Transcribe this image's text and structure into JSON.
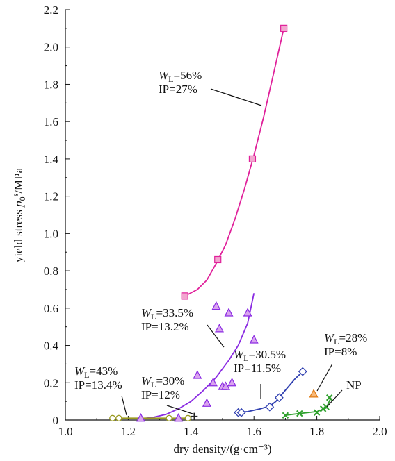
{
  "chart_data": {
    "type": "scatter",
    "xlabel": "dry density/(g·cm⁻³)",
    "ylabel_main": "yield stress ",
    "ylabel_var": "p",
    "ylabel_sub": "0",
    "ylabel_sup": "s",
    "ylabel_unit": "/MPa",
    "xlim": [
      1.0,
      2.0
    ],
    "ylim": [
      0,
      2.2
    ],
    "xticks": [
      "1.0",
      "1.2",
      "1.4",
      "1.6",
      "1.8",
      "2.0"
    ],
    "yticks": [
      "0",
      "0.2",
      "0.4",
      "0.6",
      "0.8",
      "1.0",
      "1.2",
      "1.4",
      "1.6",
      "1.8",
      "2.0",
      "2.2"
    ],
    "grid": false,
    "series": [
      {
        "color": "#e0209a",
        "marker": "square",
        "marker_fill": "#f2a6cf",
        "points": [
          [
            1.38,
            0.665
          ],
          [
            1.485,
            0.86
          ],
          [
            1.595,
            1.4
          ],
          [
            1.695,
            2.1
          ]
        ],
        "curve": [
          [
            1.38,
            0.665
          ],
          [
            1.42,
            0.7
          ],
          [
            1.45,
            0.75
          ],
          [
            1.48,
            0.84
          ],
          [
            1.51,
            0.94
          ],
          [
            1.54,
            1.08
          ],
          [
            1.57,
            1.24
          ],
          [
            1.6,
            1.42
          ],
          [
            1.63,
            1.62
          ],
          [
            1.66,
            1.84
          ],
          [
            1.695,
            2.1
          ]
        ]
      },
      {
        "color": "#8a2be2",
        "marker": "triangle",
        "marker_fill": "#d9a3ef",
        "points": [
          [
            1.24,
            0.01
          ],
          [
            1.36,
            0.01
          ],
          [
            1.42,
            0.24
          ],
          [
            1.45,
            0.09
          ],
          [
            1.47,
            0.2
          ],
          [
            1.48,
            0.61
          ],
          [
            1.49,
            0.49
          ],
          [
            1.5,
            0.18
          ],
          [
            1.51,
            0.18
          ],
          [
            1.52,
            0.575
          ],
          [
            1.53,
            0.2
          ],
          [
            1.58,
            0.575
          ],
          [
            1.6,
            0.43
          ]
        ],
        "curve": [
          [
            1.23,
            0.005
          ],
          [
            1.28,
            0.015
          ],
          [
            1.32,
            0.03
          ],
          [
            1.36,
            0.06
          ],
          [
            1.4,
            0.1
          ],
          [
            1.44,
            0.16
          ],
          [
            1.48,
            0.23
          ],
          [
            1.52,
            0.32
          ],
          [
            1.55,
            0.4
          ],
          [
            1.58,
            0.52
          ],
          [
            1.6,
            0.68
          ]
        ]
      },
      {
        "color": "#2f3fb0",
        "marker": "diamond",
        "marker_fill": "#ffffff",
        "points": [
          [
            1.55,
            0.04
          ],
          [
            1.56,
            0.04
          ],
          [
            1.65,
            0.07
          ],
          [
            1.68,
            0.12
          ],
          [
            1.755,
            0.26
          ]
        ],
        "curve": [
          [
            1.545,
            0.04
          ],
          [
            1.58,
            0.045
          ],
          [
            1.62,
            0.06
          ],
          [
            1.65,
            0.075
          ],
          [
            1.67,
            0.1
          ],
          [
            1.7,
            0.16
          ],
          [
            1.73,
            0.22
          ],
          [
            1.755,
            0.26
          ]
        ]
      },
      {
        "color": "#2ea02c",
        "marker": "x",
        "marker_fill": "#2ea02c",
        "points": [
          [
            1.7,
            0.025
          ],
          [
            1.745,
            0.035
          ],
          [
            1.8,
            0.04
          ],
          [
            1.82,
            0.06
          ],
          [
            1.83,
            0.07
          ],
          [
            1.84,
            0.12
          ]
        ],
        "curve": [
          [
            1.695,
            0.025
          ],
          [
            1.745,
            0.035
          ],
          [
            1.8,
            0.045
          ],
          [
            1.83,
            0.065
          ],
          [
            1.845,
            0.12
          ]
        ]
      },
      {
        "color": "#e07a10",
        "marker": "triangle",
        "marker_fill": "#f7b97a",
        "points": [
          [
            1.79,
            0.14
          ]
        ],
        "curve": []
      },
      {
        "color": "#9a9a20",
        "marker": "circle",
        "marker_fill": "#ffffff",
        "points": [
          [
            1.15,
            0.01
          ],
          [
            1.17,
            0.01
          ],
          [
            1.33,
            0.01
          ],
          [
            1.39,
            0.01
          ]
        ],
        "curve": [
          [
            1.17,
            0.01
          ],
          [
            1.39,
            0.01
          ]
        ]
      },
      {
        "color": "#222222",
        "marker": "plus",
        "marker_fill": "#222222",
        "points": [
          [
            1.41,
            0.02
          ]
        ],
        "curve": []
      }
    ],
    "annotations": [
      {
        "var": "W",
        "sub": "L",
        "rest": "=56%",
        "line2": "IP=27%"
      },
      {
        "var": "W",
        "sub": "L",
        "rest": "=33.5%",
        "line2": "IP=13.2%"
      },
      {
        "var": "W",
        "sub": "L",
        "rest": "=30.5%",
        "line2": "IP=11.5%"
      },
      {
        "var": "W",
        "sub": "L",
        "rest": "=28%",
        "line2": "IP=8%"
      },
      {
        "var": "W",
        "sub": "L",
        "rest": "=43%",
        "line2": "IP=13.4%"
      },
      {
        "var": "W",
        "sub": "L",
        "rest": "=30%",
        "line2": "IP=12%"
      },
      {
        "text": "NP"
      }
    ]
  }
}
